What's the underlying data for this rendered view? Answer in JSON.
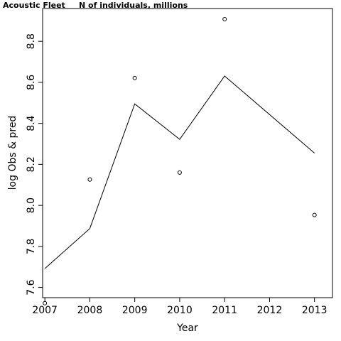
{
  "chart_data": {
    "type": "line",
    "title_left": "Acoustic Fleet",
    "title_right": "N of individuals, millions",
    "xlabel": "Year",
    "ylabel": "log Obs & pred",
    "xlim": [
      2006.95,
      2013.4
    ],
    "ylim": [
      7.55,
      8.96
    ],
    "x_ticks": [
      2007,
      2008,
      2009,
      2010,
      2011,
      2012,
      2013
    ],
    "y_ticks": [
      7.6,
      7.8,
      8.0,
      8.2,
      8.4,
      8.6,
      8.8
    ],
    "y_tick_labels": [
      "7.6",
      "7.8",
      "8.0",
      "8.2",
      "8.4",
      "8.6",
      "8.8"
    ],
    "grid": false,
    "series": [
      {
        "kind": "observed-points",
        "x": [
          2007,
          2008,
          2009,
          2010,
          2011,
          2013
        ],
        "y": [
          7.523,
          8.126,
          8.621,
          8.16,
          8.908,
          7.953
        ]
      },
      {
        "kind": "predicted-line",
        "x": [
          2007,
          2008,
          2009,
          2010,
          2011,
          2013
        ],
        "y": [
          7.692,
          7.887,
          8.495,
          8.322,
          8.631,
          8.255
        ]
      }
    ]
  }
}
